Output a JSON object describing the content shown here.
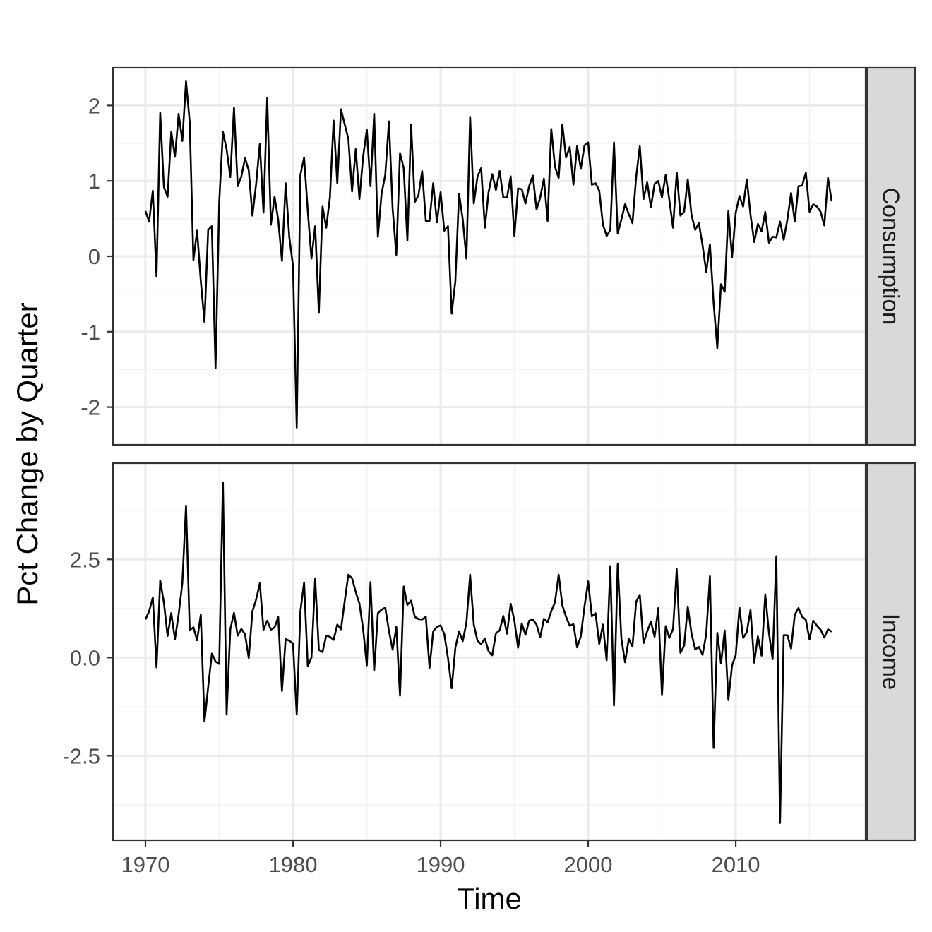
{
  "chart_data": {
    "type": "line",
    "xlabel": "Time",
    "ylabel": "Pct Change by Quarter",
    "x_start": 1970.0,
    "x_step": 0.25,
    "xlim": [
      1967.8,
      2018.8
    ],
    "x_ticks": [
      1970,
      1980,
      1990,
      2000,
      2010
    ],
    "grid": true,
    "facets": [
      {
        "strip": "Consumption",
        "ylim": [
          -2.5,
          2.5
        ],
        "y_ticks": [
          -2,
          -1,
          0,
          1,
          2
        ],
        "y_tick_labels": [
          "-2",
          "-1",
          "0",
          "1",
          "2"
        ],
        "values": [
          0.6,
          0.46,
          0.87,
          -0.27,
          1.9,
          0.92,
          0.79,
          1.65,
          1.32,
          1.89,
          1.53,
          2.32,
          1.78,
          -0.05,
          0.34,
          -0.33,
          -0.87,
          0.35,
          0.4,
          -1.48,
          0.72,
          1.65,
          1.42,
          1.05,
          1.97,
          0.93,
          1.06,
          1.3,
          1.14,
          0.54,
          0.96,
          1.49,
          0.58,
          2.1,
          0.42,
          0.79,
          0.48,
          -0.06,
          0.97,
          0.25,
          -0.13,
          -2.27,
          1.08,
          1.31,
          0.6,
          -0.03,
          0.4,
          -0.75,
          0.66,
          0.38,
          0.78,
          1.8,
          0.97,
          1.95,
          1.75,
          1.56,
          0.86,
          1.42,
          0.76,
          1.32,
          1.68,
          0.93,
          1.89,
          0.26,
          0.83,
          1.08,
          1.79,
          0.63,
          0.02,
          1.37,
          1.17,
          0.21,
          1.75,
          0.72,
          0.81,
          1.13,
          0.47,
          0.47,
          0.97,
          0.45,
          0.85,
          0.34,
          0.4,
          -0.76,
          -0.33,
          0.83,
          0.49,
          -0.03,
          1.85,
          0.7,
          1.06,
          1.17,
          0.38,
          0.85,
          1.09,
          0.88,
          1.13,
          0.78,
          0.78,
          1.06,
          0.27,
          0.9,
          0.89,
          0.7,
          0.93,
          1.07,
          0.62,
          0.78,
          1.03,
          0.47,
          1.69,
          1.19,
          1.04,
          1.75,
          1.31,
          1.45,
          0.95,
          1.46,
          1.16,
          1.47,
          1.51,
          0.95,
          0.97,
          0.87,
          0.42,
          0.27,
          0.35,
          1.51,
          0.3,
          0.49,
          0.69,
          0.56,
          0.44,
          1.05,
          1.46,
          0.76,
          0.98,
          0.65,
          0.96,
          1.0,
          0.78,
          1.08,
          0.75,
          0.38,
          1.11,
          0.54,
          0.59,
          1.02,
          0.55,
          0.35,
          0.44,
          0.15,
          -0.21,
          0.16,
          -0.62,
          -1.22,
          -0.37,
          -0.47,
          0.6,
          -0.01,
          0.58,
          0.8,
          0.66,
          1.02,
          0.55,
          0.19,
          0.43,
          0.33,
          0.59,
          0.18,
          0.26,
          0.25,
          0.46,
          0.22,
          0.49,
          0.84,
          0.46,
          0.93,
          0.94,
          1.11,
          0.59,
          0.69,
          0.66,
          0.59,
          0.41,
          1.04,
          0.73
        ]
      },
      {
        "strip": "Income",
        "ylim": [
          -4.65,
          4.95
        ],
        "y_ticks": [
          -2.5,
          0.0,
          2.5
        ],
        "y_tick_labels": [
          "-2.5",
          "0.0",
          "2.5"
        ],
        "values": [
          0.97,
          1.18,
          1.53,
          -0.25,
          1.96,
          1.4,
          0.55,
          1.13,
          0.47,
          1.1,
          1.9,
          3.87,
          0.7,
          0.77,
          0.44,
          1.09,
          -1.63,
          -0.75,
          0.1,
          -0.1,
          -0.16,
          4.46,
          -1.45,
          0.72,
          1.14,
          0.56,
          0.73,
          0.59,
          -0.01,
          1.18,
          1.48,
          1.89,
          0.71,
          0.94,
          0.71,
          0.77,
          1.03,
          -0.85,
          0.47,
          0.43,
          0.36,
          -1.45,
          1.18,
          1.91,
          -0.22,
          0.0,
          2.01,
          0.2,
          0.14,
          0.56,
          0.53,
          0.45,
          0.84,
          0.72,
          1.43,
          2.11,
          2.02,
          1.67,
          1.38,
          0.73,
          -0.2,
          1.92,
          -0.33,
          1.13,
          1.22,
          1.27,
          0.68,
          0.2,
          0.78,
          -0.97,
          1.81,
          1.34,
          1.45,
          1.04,
          0.98,
          0.97,
          1.04,
          -0.26,
          0.67,
          0.78,
          0.82,
          0.6,
          -0.01,
          -0.78,
          0.25,
          0.67,
          0.42,
          0.89,
          2.11,
          0.84,
          0.43,
          0.34,
          0.49,
          0.16,
          0.06,
          0.62,
          0.69,
          1.06,
          0.61,
          1.37,
          0.94,
          0.25,
          0.87,
          0.58,
          0.94,
          0.97,
          0.84,
          0.52,
          0.99,
          0.9,
          1.18,
          1.41,
          2.11,
          1.33,
          1.04,
          0.81,
          0.85,
          0.26,
          0.54,
          1.3,
          1.94,
          1.05,
          1.13,
          0.35,
          0.84,
          -0.07,
          2.33,
          -1.22,
          2.38,
          0.48,
          -0.12,
          0.48,
          0.28,
          1.42,
          1.6,
          0.37,
          0.67,
          0.92,
          0.53,
          1.26,
          -0.96,
          0.8,
          0.5,
          0.73,
          2.25,
          0.12,
          0.3,
          1.3,
          0.62,
          0.21,
          0.27,
          0.07,
          0.6,
          2.07,
          -2.3,
          0.63,
          -0.15,
          0.69,
          -1.08,
          -0.2,
          0.07,
          1.27,
          0.5,
          0.65,
          1.21,
          -0.13,
          0.54,
          0.05,
          1.61,
          0.63,
          -0.04,
          2.58,
          -4.21,
          0.57,
          0.57,
          0.23,
          1.09,
          1.26,
          1.04,
          0.96,
          0.46,
          0.94,
          0.81,
          0.71,
          0.51,
          0.72,
          0.66
        ]
      }
    ]
  }
}
